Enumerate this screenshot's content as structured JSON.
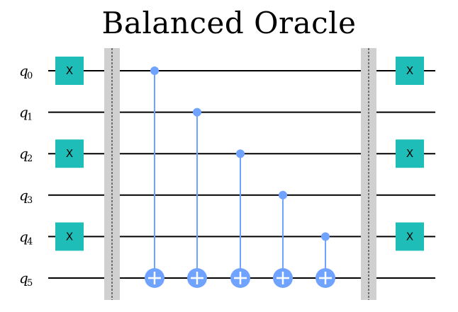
{
  "title": "Balanced Oracle",
  "qubits": [
    {
      "name": "q",
      "index": "0"
    },
    {
      "name": "q",
      "index": "1"
    },
    {
      "name": "q",
      "index": "2"
    },
    {
      "name": "q",
      "index": "3"
    },
    {
      "name": "q",
      "index": "4"
    },
    {
      "name": "q",
      "index": "5"
    }
  ],
  "gate_label": "X",
  "x_gate_qubits_before": [
    0,
    2,
    4
  ],
  "x_gate_qubits_after": [
    0,
    2,
    4
  ],
  "cnots": [
    {
      "control": 0,
      "target": 5
    },
    {
      "control": 1,
      "target": 5
    },
    {
      "control": 2,
      "target": 5
    },
    {
      "control": 3,
      "target": 5
    },
    {
      "control": 4,
      "target": 5
    }
  ],
  "colors": {
    "x_gate": "#1ebdb7",
    "cnot": "#6fa3ff",
    "barrier": "#d0d0d0",
    "wire": "#000000"
  }
}
